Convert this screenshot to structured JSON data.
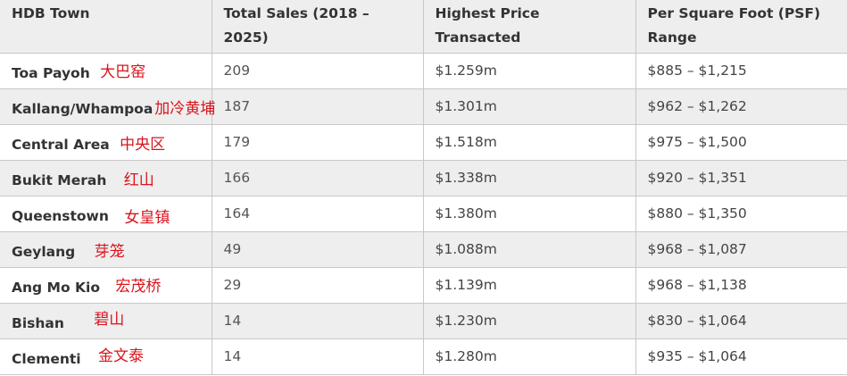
{
  "table": {
    "headers": [
      "HDB Town",
      "Total Sales (2018 – 2025)",
      "Highest Price Transacted",
      "Per Square Foot (PSF) Range"
    ],
    "rows": [
      {
        "town": "Toa Payoh",
        "chinese": "大巴窑",
        "sales": "209",
        "highest": "$1.259m",
        "psf": "$885 – $1,215"
      },
      {
        "town": "Kallang/Whampoa",
        "chinese": "加冷黄埔",
        "sales": "187",
        "highest": "$1.301m",
        "psf": "$962 – $1,262"
      },
      {
        "town": "Central Area",
        "chinese": "中央区",
        "sales": "179",
        "highest": "$1.518m",
        "psf": "$975 – $1,500"
      },
      {
        "town": "Bukit Merah",
        "chinese": "红山",
        "sales": "166",
        "highest": "$1.338m",
        "psf": "$920 – $1,351"
      },
      {
        "town": "Queenstown",
        "chinese": "女皇镇",
        "sales": "164",
        "highest": "$1.380m",
        "psf": "$880 – $1,350"
      },
      {
        "town": "Geylang",
        "chinese": "芽笼",
        "sales": "49",
        "highest": "$1.088m",
        "psf": "$968 – $1,087"
      },
      {
        "town": "Ang Mo Kio",
        "chinese": "宏茂桥",
        "sales": "29",
        "highest": "$1.139m",
        "psf": "$968 – $1,138"
      },
      {
        "town": "Bishan",
        "chinese": "碧山",
        "sales": "14",
        "highest": "$1.230m",
        "psf": "$830 – $1,064"
      },
      {
        "town": "Clementi",
        "chinese": "金文泰",
        "sales": "14",
        "highest": "$1.280m",
        "psf": "$935 – $1,064"
      }
    ]
  }
}
